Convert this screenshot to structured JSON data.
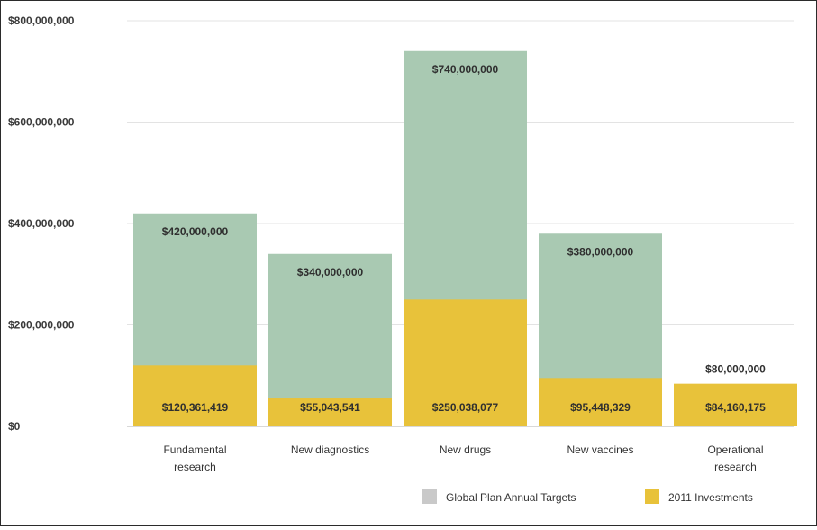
{
  "chart_data": {
    "type": "bar",
    "title": "",
    "xlabel": "",
    "ylabel": "",
    "ylim": [
      0,
      800000000
    ],
    "y_ticks": [
      {
        "value": 0,
        "label": "$0"
      },
      {
        "value": 200000000,
        "label": "$200,000,000"
      },
      {
        "value": 400000000,
        "label": "$400,000,000"
      },
      {
        "value": 600000000,
        "label": "$600,000,000"
      },
      {
        "value": 800000000,
        "label": "$800,000,000"
      }
    ],
    "categories": [
      [
        "Fundamental",
        "research"
      ],
      [
        "New diagnostics"
      ],
      [
        "New drugs"
      ],
      [
        "New vaccines"
      ],
      [
        "Operational",
        "research"
      ]
    ],
    "grid": true,
    "legend_position": "bottom-right",
    "series": [
      {
        "name": "Global Plan Annual Targets",
        "color": "#a9c9b2",
        "values": [
          420000000,
          340000000,
          740000000,
          380000000,
          80000000
        ],
        "labels": [
          "$420,000,000",
          "$340,000,000",
          "$740,000,000",
          "$380,000,000",
          "$80,000,000"
        ]
      },
      {
        "name": "2011 Investments",
        "color": "#e8c23a",
        "values": [
          120361419,
          55043541,
          250038077,
          95448329,
          84160175
        ],
        "labels": [
          "$120,361,419",
          "$55,043,541",
          "$250,038,077",
          "$95,448,329",
          "$84,160,175"
        ]
      }
    ]
  }
}
